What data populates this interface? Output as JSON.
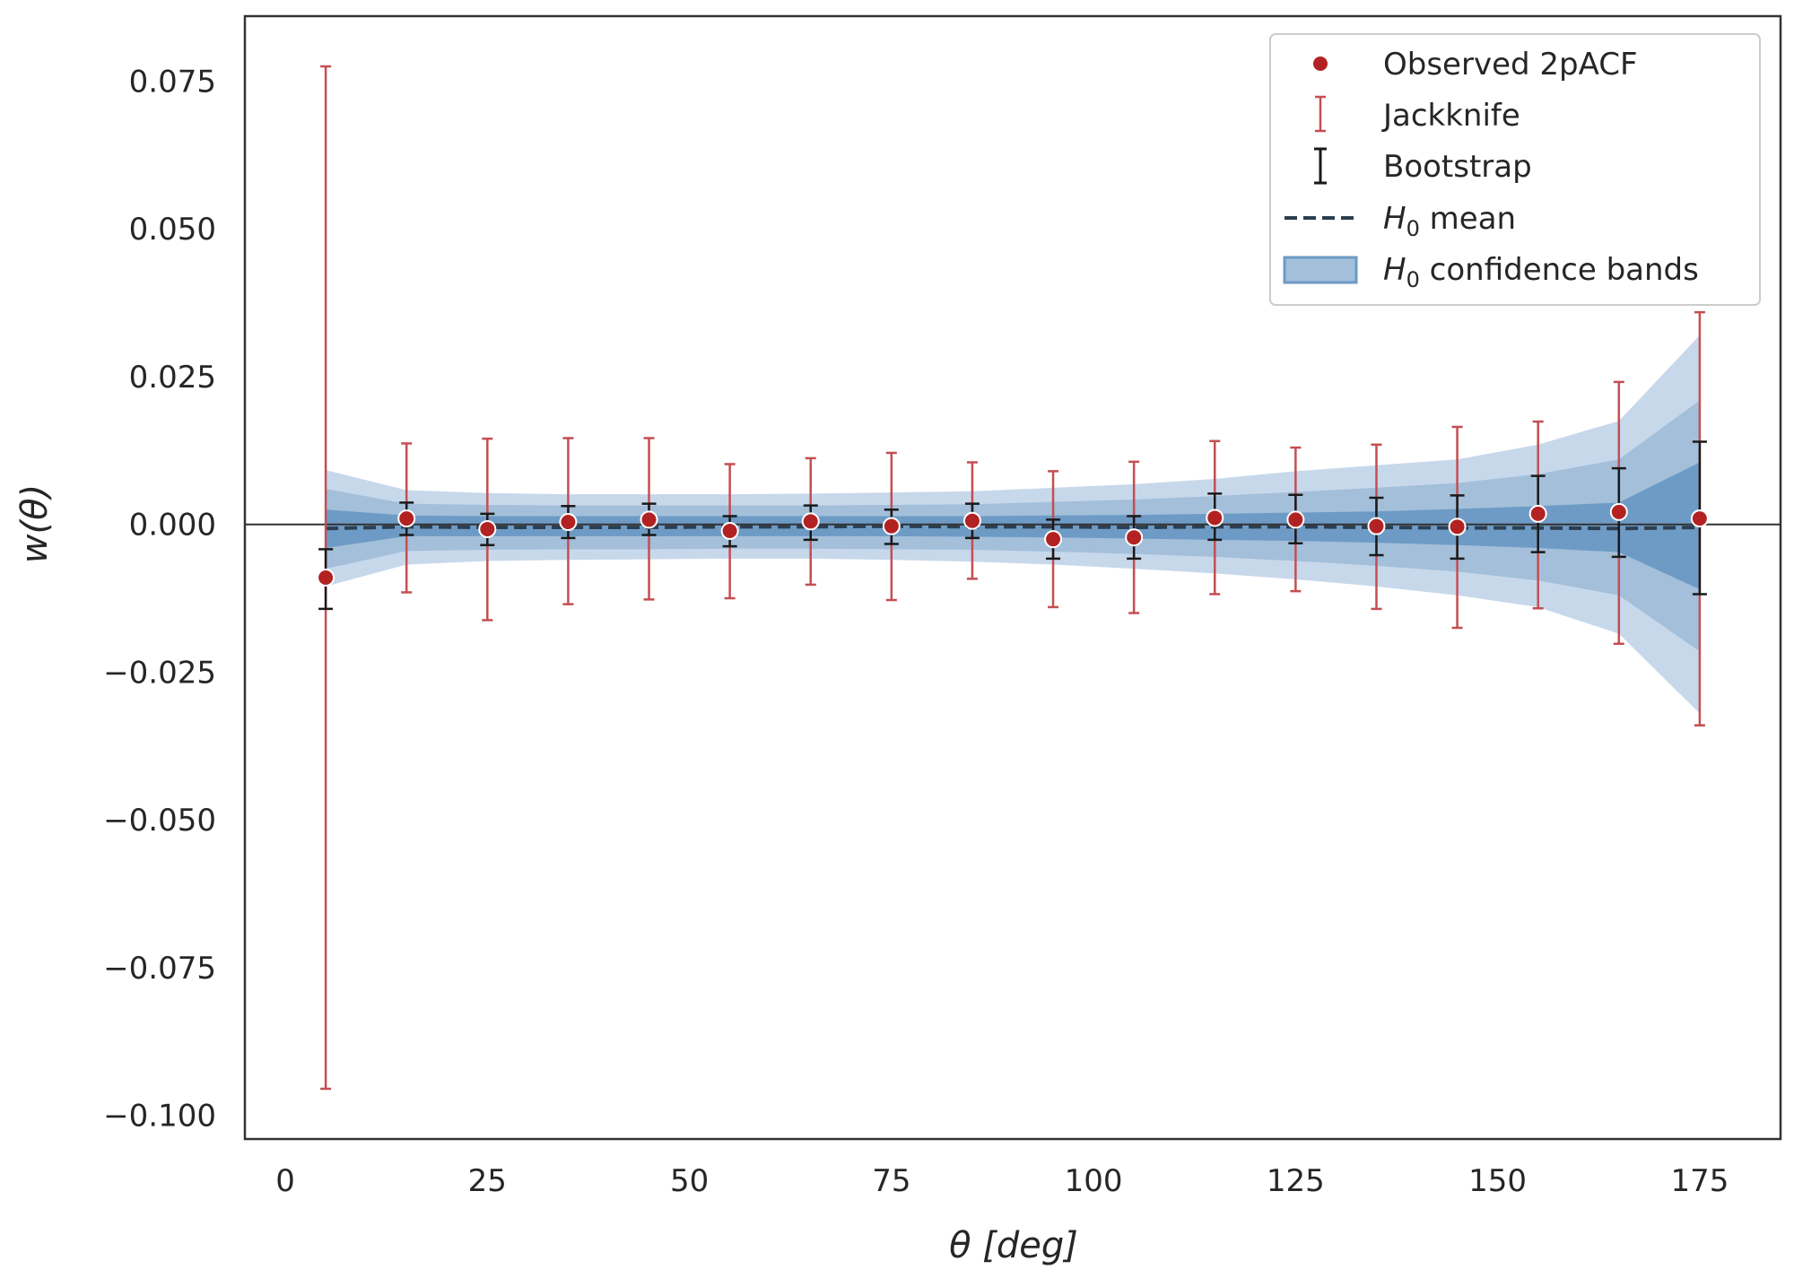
{
  "chart_data": {
    "type": "scatter",
    "title": "",
    "xlabel": "θ [deg]",
    "ylabel": "w(θ)",
    "xlim": [
      -5,
      185
    ],
    "ylim": [
      -0.104,
      0.086
    ],
    "xticks": [
      0,
      25,
      50,
      75,
      100,
      125,
      150,
      175
    ],
    "yticks": [
      -0.1,
      -0.075,
      -0.05,
      -0.025,
      0.0,
      0.025,
      0.05,
      0.075
    ],
    "xtick_labels": [
      "0",
      "25",
      "50",
      "75",
      "100",
      "125",
      "150",
      "175"
    ],
    "ytick_labels": [
      "−0.100",
      "−0.075",
      "−0.050",
      "−0.025",
      "0.000",
      "0.025",
      "0.050",
      "0.075"
    ],
    "grid": false,
    "zero_line": true,
    "legend_position": "top-right",
    "legend": {
      "observed": "Observed 2pACF",
      "jackknife": "Jackknife",
      "bootstrap": "Bootstrap",
      "h0_mean_symbol": "H",
      "h0_mean_sub": "0",
      "h0_mean_text": " mean",
      "h0_bands_symbol": "H",
      "h0_bands_sub": "0",
      "h0_bands_text": " confidence bands"
    },
    "colors": {
      "observed": "#b22222",
      "jackknife": "#c44e52",
      "bootstrap": "#1a1a1a",
      "h0_mean": "#2c3e50",
      "band_1sigma": "#6e9bc5",
      "band_2sigma": "#a3bfda",
      "band_3sigma": "#c8d8eb"
    },
    "x": [
      5,
      15,
      25,
      35,
      45,
      55,
      65,
      75,
      85,
      95,
      105,
      115,
      125,
      135,
      145,
      155,
      165,
      175
    ],
    "observed": [
      -0.009,
      0.001,
      -0.0008,
      0.0004,
      0.0008,
      -0.0011,
      0.0005,
      -0.0003,
      0.0006,
      -0.0025,
      -0.0022,
      0.0011,
      0.0008,
      -0.0003,
      -0.0004,
      0.0018,
      0.0021,
      0.001
    ],
    "jackknife_lower": [
      -0.0955,
      -0.0115,
      -0.0162,
      -0.0135,
      -0.0127,
      -0.0125,
      -0.0102,
      -0.0128,
      -0.0092,
      -0.014,
      -0.015,
      -0.0118,
      -0.0113,
      -0.0143,
      -0.0175,
      -0.0142,
      -0.0202,
      -0.034
    ],
    "jackknife_upper": [
      0.0775,
      0.0137,
      0.0145,
      0.0146,
      0.0146,
      0.0102,
      0.0112,
      0.0121,
      0.0105,
      0.009,
      0.0106,
      0.0141,
      0.013,
      0.0135,
      0.0165,
      0.0174,
      0.0241,
      0.0359
    ],
    "bootstrap_lower": [
      -0.0143,
      -0.0018,
      -0.0035,
      -0.0023,
      -0.0018,
      -0.0037,
      -0.0026,
      -0.0033,
      -0.0023,
      -0.0058,
      -0.0058,
      -0.0026,
      -0.0032,
      -0.0052,
      -0.0058,
      -0.0047,
      -0.0055,
      -0.0118
    ],
    "bootstrap_upper": [
      -0.0042,
      0.0037,
      0.0018,
      0.0031,
      0.0035,
      0.0014,
      0.0032,
      0.0025,
      0.0035,
      0.0008,
      0.0014,
      0.0052,
      0.005,
      0.0045,
      0.0049,
      0.0082,
      0.0095,
      0.014
    ],
    "h0_mean": [
      -0.0007,
      -0.0004,
      -0.0005,
      -0.0005,
      -0.0005,
      -0.0004,
      -0.0004,
      -0.0003,
      -0.0004,
      -0.0004,
      -0.0005,
      -0.0004,
      -0.0004,
      -0.0005,
      -0.0006,
      -0.0006,
      -0.0007,
      -0.0005
    ],
    "h0_band_1sigma_lower": [
      -0.004,
      -0.002,
      -0.002,
      -0.002,
      -0.002,
      -0.002,
      -0.002,
      -0.002,
      -0.0021,
      -0.0022,
      -0.0024,
      -0.0026,
      -0.0028,
      -0.0031,
      -0.0035,
      -0.004,
      -0.0047,
      -0.011
    ],
    "h0_band_1sigma_upper": [
      0.0025,
      0.0015,
      0.0014,
      0.0014,
      0.0014,
      0.0014,
      0.0014,
      0.0014,
      0.0014,
      0.0015,
      0.0016,
      0.0018,
      0.002,
      0.0022,
      0.0026,
      0.0031,
      0.0037,
      0.0105
    ],
    "h0_band_2sigma_lower": [
      -0.0075,
      -0.0045,
      -0.0043,
      -0.0042,
      -0.0042,
      -0.0041,
      -0.0041,
      -0.0042,
      -0.0043,
      -0.0046,
      -0.005,
      -0.0055,
      -0.0062,
      -0.007,
      -0.008,
      -0.0095,
      -0.012,
      -0.0215
    ],
    "h0_band_2sigma_upper": [
      0.006,
      0.0035,
      0.0033,
      0.0032,
      0.0032,
      0.0032,
      0.0032,
      0.0033,
      0.0034,
      0.0038,
      0.0042,
      0.0048,
      0.0055,
      0.0062,
      0.007,
      0.0085,
      0.011,
      0.021
    ],
    "h0_band_3sigma_lower": [
      -0.0105,
      -0.0068,
      -0.0062,
      -0.006,
      -0.0059,
      -0.0058,
      -0.0058,
      -0.006,
      -0.0063,
      -0.0068,
      -0.0075,
      -0.0083,
      -0.0093,
      -0.0105,
      -0.012,
      -0.014,
      -0.0185,
      -0.032
    ],
    "h0_band_3sigma_upper": [
      0.0092,
      0.0058,
      0.0053,
      0.0051,
      0.0051,
      0.0051,
      0.0052,
      0.0054,
      0.0056,
      0.0062,
      0.0068,
      0.0077,
      0.009,
      0.01,
      0.011,
      0.0135,
      0.0175,
      0.032
    ]
  }
}
